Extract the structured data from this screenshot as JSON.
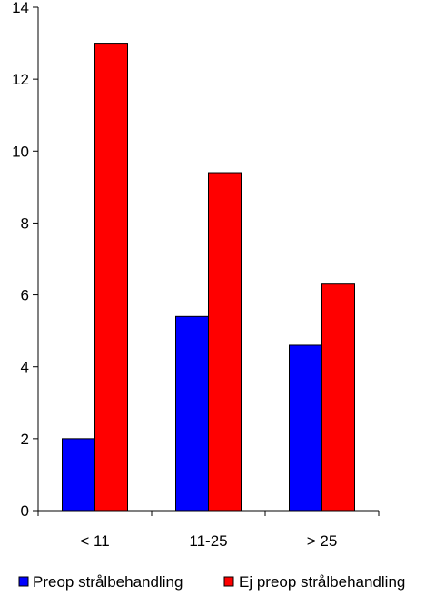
{
  "chart_data": {
    "type": "bar",
    "categories": [
      "< 11",
      "11-25",
      "> 25"
    ],
    "series": [
      {
        "name": "Preop strålbehandling",
        "color": "#0000ff",
        "values": [
          2.0,
          5.4,
          4.6
        ]
      },
      {
        "name": "Ej preop strålbehandling",
        "color": "#ff0000",
        "values": [
          13.0,
          9.4,
          6.3
        ]
      }
    ],
    "ylim": [
      0,
      14
    ],
    "yticks": [
      0,
      2,
      4,
      6,
      8,
      10,
      12,
      14
    ],
    "grid": false,
    "legend": "bottom"
  }
}
